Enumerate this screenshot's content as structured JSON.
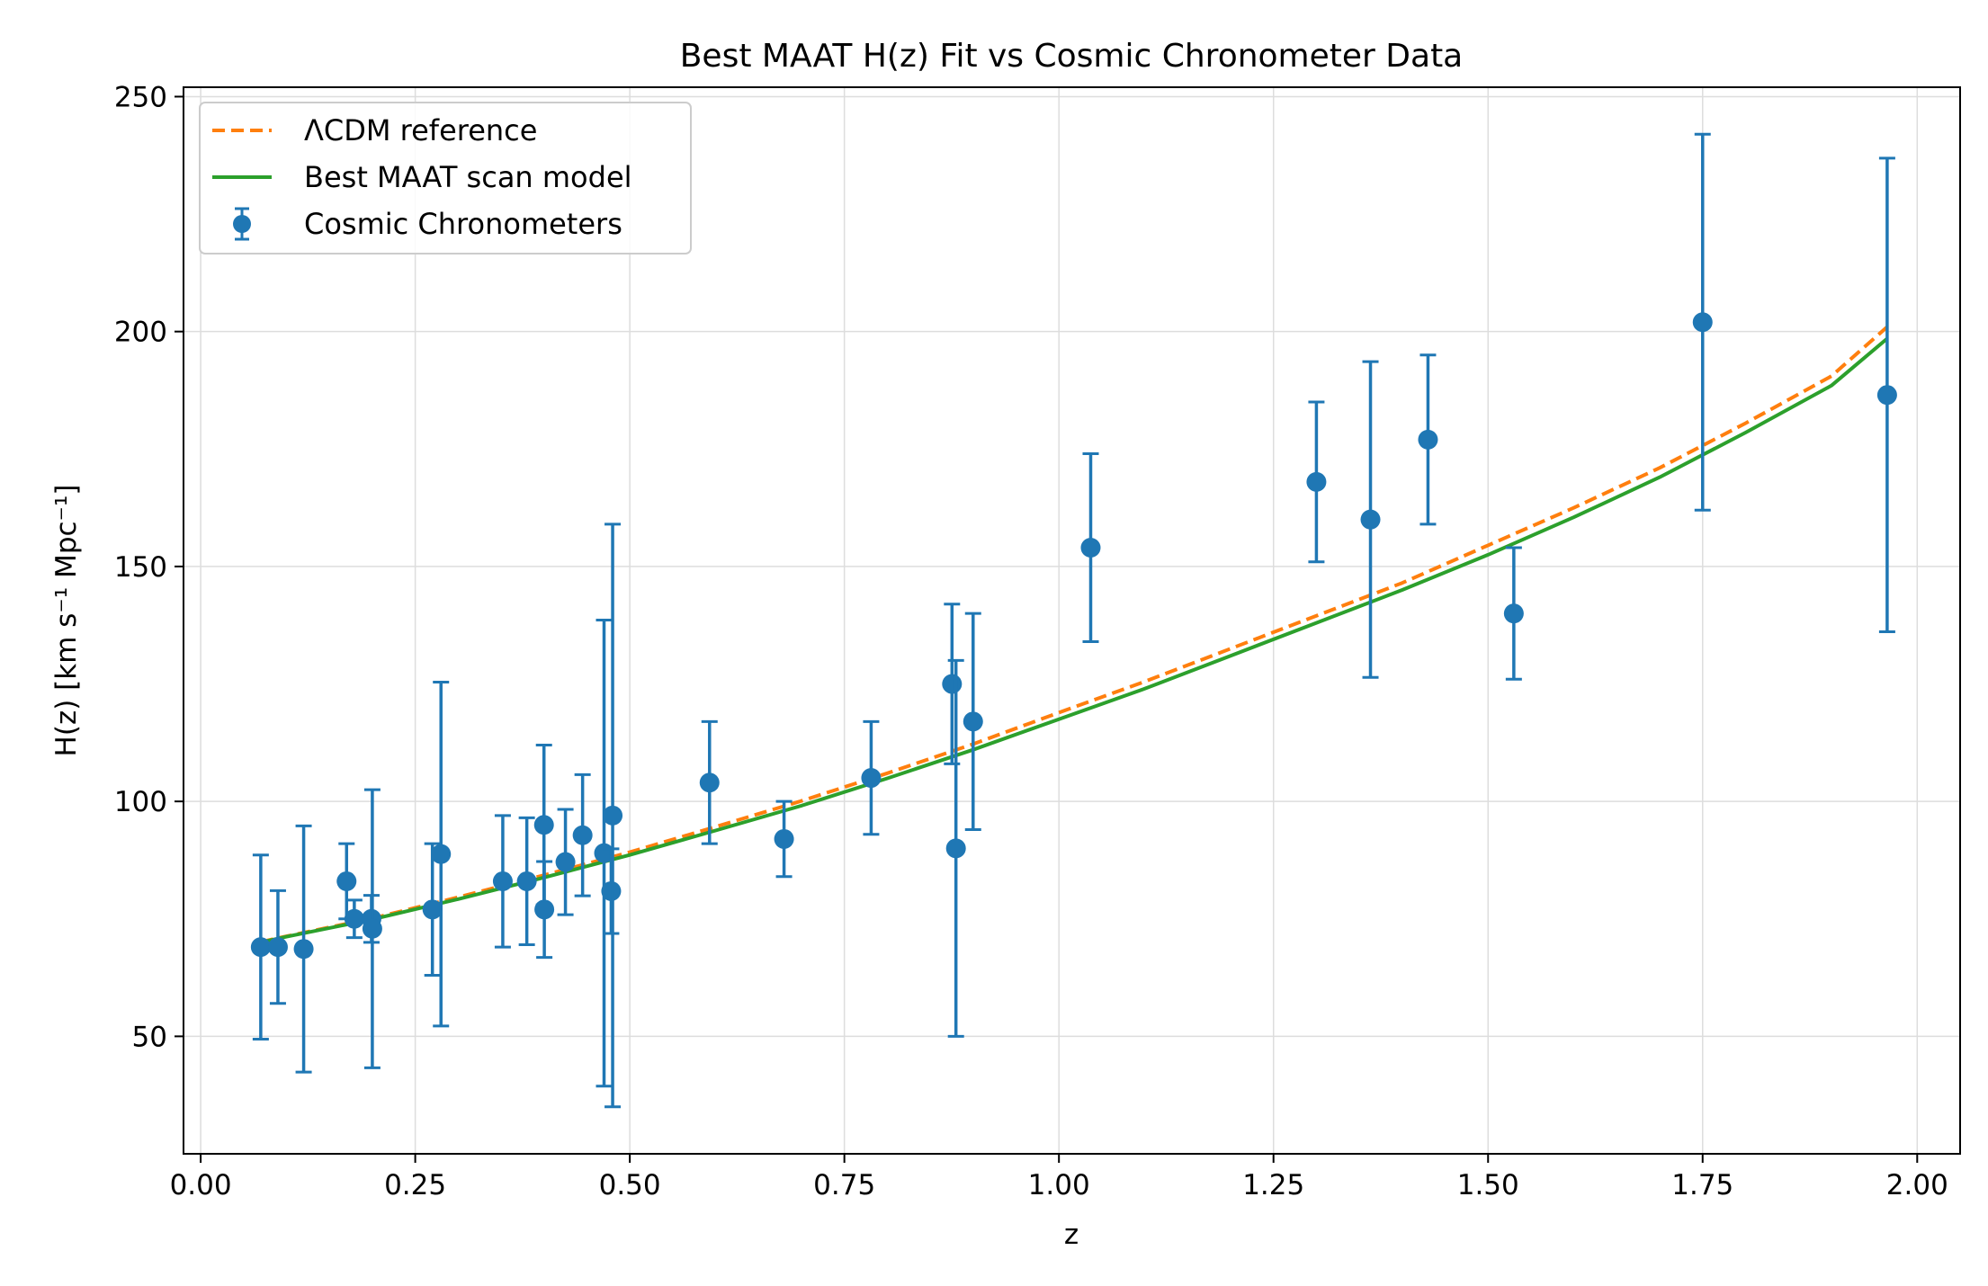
{
  "chart_data": {
    "type": "scatter",
    "title": "Best MAAT H(z) Fit vs Cosmic Chronometer Data",
    "xlabel": "z",
    "ylabel": "H(z) [km s⁻¹ Mpc⁻¹]",
    "xlim": [
      -0.02,
      2.05
    ],
    "ylim": [
      25,
      252
    ],
    "xticks": [
      0.0,
      0.25,
      0.5,
      0.75,
      1.0,
      1.25,
      1.5,
      1.75,
      2.0
    ],
    "xtick_labels": [
      "0.00",
      "0.25",
      "0.50",
      "0.75",
      "1.00",
      "1.25",
      "1.50",
      "1.75",
      "2.00"
    ],
    "yticks": [
      50,
      100,
      150,
      200,
      250
    ],
    "ytick_labels": [
      "50",
      "100",
      "150",
      "200",
      "250"
    ],
    "grid": true,
    "legend_position": "top-left",
    "colors": {
      "lcdm": "#ff7f0e",
      "maat": "#2ca02c",
      "data": "#1f77b4",
      "grid": "#dddddd"
    },
    "series": [
      {
        "name": "ΛCDM reference",
        "kind": "line",
        "style": "dashed",
        "color": "#ff7f0e",
        "x": [
          0.07,
          0.1,
          0.2,
          0.3,
          0.4,
          0.5,
          0.6,
          0.7,
          0.8,
          0.9,
          1.0,
          1.1,
          1.2,
          1.3,
          1.4,
          1.5,
          1.6,
          1.7,
          1.8,
          1.9,
          1.965
        ],
        "y": [
          70.1,
          71.3,
          75.1,
          79.6,
          84.3,
          89.2,
          94.6,
          100.1,
          106.0,
          112.2,
          118.9,
          125.5,
          132.5,
          139.5,
          146.5,
          154.5,
          162.5,
          171.0,
          180.5,
          190.5,
          201.0
        ]
      },
      {
        "name": "Best MAAT scan model",
        "kind": "line",
        "style": "solid",
        "color": "#2ca02c",
        "x": [
          0.07,
          0.1,
          0.2,
          0.3,
          0.4,
          0.5,
          0.6,
          0.7,
          0.8,
          0.9,
          1.0,
          1.1,
          1.2,
          1.3,
          1.4,
          1.5,
          1.6,
          1.7,
          1.8,
          1.9,
          1.965
        ],
        "y": [
          70.0,
          71.2,
          74.9,
          79.2,
          83.8,
          88.6,
          93.8,
          99.1,
          104.9,
          111.0,
          117.5,
          124.0,
          131.0,
          138.0,
          145.0,
          152.5,
          160.5,
          169.0,
          178.5,
          188.5,
          198.5
        ]
      },
      {
        "name": "Cosmic Chronometers",
        "kind": "errorbar",
        "color": "#1f77b4",
        "points": [
          {
            "z": 0.07,
            "H": 69.0,
            "err": 19.6
          },
          {
            "z": 0.09,
            "H": 69.0,
            "err": 12.0
          },
          {
            "z": 0.12,
            "H": 68.6,
            "err": 26.2
          },
          {
            "z": 0.17,
            "H": 83.0,
            "err": 8.0
          },
          {
            "z": 0.179,
            "H": 75.0,
            "err": 4.0
          },
          {
            "z": 0.199,
            "H": 75.0,
            "err": 5.0
          },
          {
            "z": 0.2,
            "H": 72.9,
            "err": 29.6
          },
          {
            "z": 0.27,
            "H": 77.0,
            "err": 14.0
          },
          {
            "z": 0.28,
            "H": 88.8,
            "err": 36.6
          },
          {
            "z": 0.352,
            "H": 83.0,
            "err": 14.0
          },
          {
            "z": 0.38,
            "H": 83.0,
            "err": 13.5
          },
          {
            "z": 0.4,
            "H": 95.0,
            "err": 17.0
          },
          {
            "z": 0.4004,
            "H": 77.0,
            "err": 10.2
          },
          {
            "z": 0.425,
            "H": 87.1,
            "err": 11.2
          },
          {
            "z": 0.445,
            "H": 92.8,
            "err": 12.9
          },
          {
            "z": 0.47,
            "H": 89.0,
            "err": 49.6
          },
          {
            "z": 0.4783,
            "H": 80.9,
            "err": 9.0
          },
          {
            "z": 0.48,
            "H": 97.0,
            "err": 62.0
          },
          {
            "z": 0.5929,
            "H": 104.0,
            "err": 13.0
          },
          {
            "z": 0.6797,
            "H": 92.0,
            "err": 8.0
          },
          {
            "z": 0.7812,
            "H": 105.0,
            "err": 12.0
          },
          {
            "z": 0.8754,
            "H": 125.0,
            "err": 17.0
          },
          {
            "z": 0.88,
            "H": 90.0,
            "err": 40.0
          },
          {
            "z": 0.9,
            "H": 117.0,
            "err": 23.0
          },
          {
            "z": 1.037,
            "H": 154.0,
            "err": 20.0
          },
          {
            "z": 1.3,
            "H": 168.0,
            "err": 17.0
          },
          {
            "z": 1.363,
            "H": 160.0,
            "err": 33.6
          },
          {
            "z": 1.43,
            "H": 177.0,
            "err": 18.0
          },
          {
            "z": 1.53,
            "H": 140.0,
            "err": 14.0
          },
          {
            "z": 1.75,
            "H": 202.0,
            "err": 40.0
          },
          {
            "z": 1.965,
            "H": 186.5,
            "err": 50.4
          }
        ]
      }
    ]
  }
}
